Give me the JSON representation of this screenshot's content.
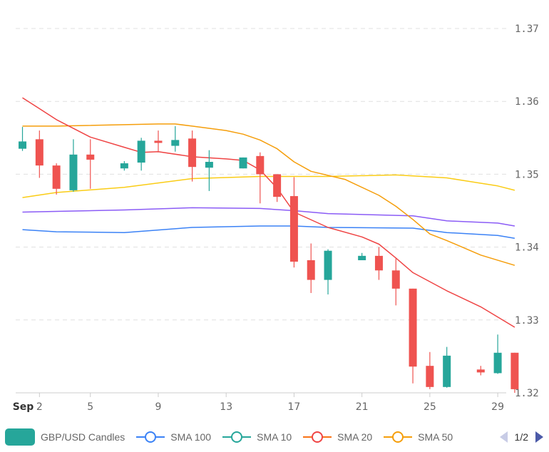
{
  "chart_data": {
    "type": "candlestick",
    "title": "",
    "xlabel": "",
    "ylabel": "",
    "ylim": [
      1.32,
      1.37
    ],
    "y_ticks": [
      "1.32",
      "1.33",
      "1.34",
      "1.35",
      "1.36",
      "1.37"
    ],
    "x_range": [
      0.6,
      29.5
    ],
    "x_ticks": [
      {
        "day": 2,
        "label": "2",
        "month_label": "Sep"
      },
      {
        "day": 5,
        "label": "5"
      },
      {
        "day": 9,
        "label": "9"
      },
      {
        "day": 13,
        "label": "13"
      },
      {
        "day": 17,
        "label": "17"
      },
      {
        "day": 21,
        "label": "21"
      },
      {
        "day": 25,
        "label": "25"
      },
      {
        "day": 29,
        "label": "29"
      }
    ],
    "grid": true,
    "legend_position": "bottom",
    "candles": [
      {
        "day": 1,
        "open": 1.3535,
        "high": 1.3565,
        "low": 1.3532,
        "close": 1.3545
      },
      {
        "day": 2,
        "open": 1.3548,
        "high": 1.356,
        "low": 1.3495,
        "close": 1.3512
      },
      {
        "day": 3,
        "open": 1.3512,
        "high": 1.3515,
        "low": 1.3472,
        "close": 1.348
      },
      {
        "day": 4,
        "open": 1.3478,
        "high": 1.3548,
        "low": 1.3476,
        "close": 1.3527
      },
      {
        "day": 5,
        "open": 1.3527,
        "high": 1.3548,
        "low": 1.348,
        "close": 1.352
      },
      {
        "day": 7,
        "open": 1.3508,
        "high": 1.3518,
        "low": 1.3505,
        "close": 1.3515
      },
      {
        "day": 8,
        "open": 1.3516,
        "high": 1.355,
        "low": 1.3505,
        "close": 1.3546
      },
      {
        "day": 9,
        "open": 1.3546,
        "high": 1.356,
        "low": 1.353,
        "close": 1.3543
      },
      {
        "day": 10,
        "open": 1.3539,
        "high": 1.3566,
        "low": 1.3531,
        "close": 1.3547
      },
      {
        "day": 11,
        "open": 1.3549,
        "high": 1.356,
        "low": 1.349,
        "close": 1.351
      },
      {
        "day": 12,
        "open": 1.3509,
        "high": 1.3533,
        "low": 1.3477,
        "close": 1.3517
      },
      {
        "day": 14,
        "open": 1.3508,
        "high": 1.3523,
        "low": 1.3508,
        "close": 1.3523
      },
      {
        "day": 15,
        "open": 1.3525,
        "high": 1.353,
        "low": 1.346,
        "close": 1.35
      },
      {
        "day": 16,
        "open": 1.35,
        "high": 1.35,
        "low": 1.3462,
        "close": 1.3469
      },
      {
        "day": 17,
        "open": 1.347,
        "high": 1.3496,
        "low": 1.3372,
        "close": 1.338
      },
      {
        "day": 18,
        "open": 1.3382,
        "high": 1.3405,
        "low": 1.3337,
        "close": 1.3355
      },
      {
        "day": 19,
        "open": 1.3355,
        "high": 1.3397,
        "low": 1.3335,
        "close": 1.3395
      },
      {
        "day": 21,
        "open": 1.3382,
        "high": 1.3392,
        "low": 1.3382,
        "close": 1.3388
      },
      {
        "day": 22,
        "open": 1.3388,
        "high": 1.34,
        "low": 1.3355,
        "close": 1.3368
      },
      {
        "day": 23,
        "open": 1.3368,
        "high": 1.3385,
        "low": 1.332,
        "close": 1.3343
      },
      {
        "day": 24,
        "open": 1.3343,
        "high": 1.3343,
        "low": 1.3213,
        "close": 1.3236
      },
      {
        "day": 25,
        "open": 1.3237,
        "high": 1.3256,
        "low": 1.3205,
        "close": 1.3208
      },
      {
        "day": 26,
        "open": 1.3208,
        "high": 1.3263,
        "low": 1.3207,
        "close": 1.3251
      },
      {
        "day": 28,
        "open": 1.3232,
        "high": 1.3237,
        "low": 1.3224,
        "close": 1.3228
      },
      {
        "day": 29,
        "open": 1.3227,
        "high": 1.328,
        "low": 1.3226,
        "close": 1.3255
      },
      {
        "day": 30,
        "open": 1.3255,
        "high": 1.3255,
        "low": 1.32,
        "close": 1.3205
      }
    ],
    "series": [
      {
        "name": "SMA 100",
        "color": "#3b82f6",
        "x": [
          1,
          3,
          7,
          11,
          15,
          17,
          19,
          24,
          26,
          29,
          30
        ],
        "values": [
          1.3424,
          1.3421,
          1.342,
          1.3427,
          1.3429,
          1.3429,
          1.3427,
          1.3426,
          1.342,
          1.3416,
          1.3412
        ]
      },
      {
        "name": "SMA",
        "color": "#8b5cf6",
        "x": [
          1,
          3,
          7,
          11,
          15,
          17,
          19,
          24,
          26,
          29,
          30
        ],
        "values": [
          1.3448,
          1.3449,
          1.3451,
          1.3454,
          1.3453,
          1.345,
          1.3446,
          1.3443,
          1.3436,
          1.3433,
          1.3429
        ]
      },
      {
        "name": "SMA 50",
        "color": "#facc15",
        "x": [
          1,
          3,
          7,
          11,
          15,
          17,
          19,
          23,
          26,
          29,
          30
        ],
        "values": [
          1.3468,
          1.3475,
          1.3482,
          1.3494,
          1.3497,
          1.3497,
          1.3497,
          1.3499,
          1.3495,
          1.3484,
          1.3478
        ]
      },
      {
        "name": "SMA",
        "color": "#f59e0b",
        "x": [
          1,
          3,
          9,
          10,
          11,
          13,
          14,
          15,
          16,
          17,
          18,
          20,
          22,
          23,
          24,
          25,
          26,
          28,
          30
        ],
        "values": [
          1.3566,
          1.3566,
          1.3569,
          1.3569,
          1.3566,
          1.356,
          1.3555,
          1.3547,
          1.3535,
          1.3517,
          1.3504,
          1.3493,
          1.3471,
          1.3456,
          1.3438,
          1.3418,
          1.3409,
          1.3389,
          1.3375
        ]
      },
      {
        "name": "SMA 20",
        "color": "#ef4444",
        "x": [
          1,
          2,
          3,
          5,
          7,
          8,
          9,
          11,
          13,
          14,
          15,
          16,
          17,
          19,
          21,
          22,
          23,
          24,
          26,
          28,
          30
        ],
        "values": [
          1.3605,
          1.359,
          1.3575,
          1.3551,
          1.3537,
          1.353,
          1.3531,
          1.3524,
          1.3521,
          1.3519,
          1.3506,
          1.3481,
          1.3448,
          1.3427,
          1.3414,
          1.3404,
          1.3385,
          1.3365,
          1.334,
          1.3318,
          1.329
        ]
      }
    ]
  },
  "legend": {
    "items": [
      {
        "label": "GBP/USD Candles",
        "kind": "box",
        "color": "#26a69a"
      },
      {
        "label": "SMA 100",
        "kind": "line",
        "color": "#3b82f6"
      },
      {
        "label": "SMA 10",
        "kind": "line",
        "color": "#26a69a"
      },
      {
        "label": "SMA 20",
        "kind": "line",
        "color": "#f97316"
      },
      {
        "label": "SMA 50",
        "kind": "line",
        "color": "#f59e0b"
      }
    ],
    "page": "1/2"
  },
  "colors": {
    "up": "#26a69a",
    "down": "#ef5350",
    "grid": "#e0e0e0",
    "axis": "#cccccc"
  }
}
